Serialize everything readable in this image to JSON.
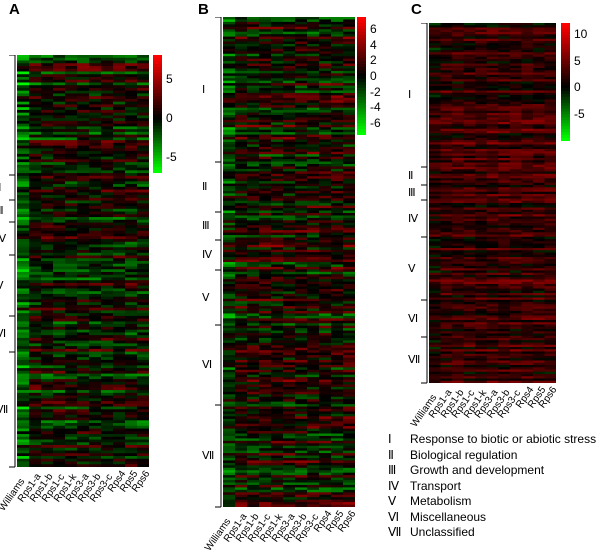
{
  "chart_data": [
    {
      "type": "heatmap",
      "panel": "A",
      "columns": [
        "Williams",
        "Rps1-a",
        "Rps1-b",
        "Rps1-c",
        "Rps1-k",
        "Rps3-a",
        "Rps3-b",
        "Rps3-c",
        "Rps4",
        "Rps5",
        "Rps6"
      ],
      "groups": [
        "Ⅰ",
        "Ⅱ",
        "Ⅲ",
        "Ⅳ",
        "Ⅴ",
        "Ⅵ",
        "Ⅶ"
      ],
      "colorbar": {
        "ticks": [
          "5",
          "0",
          "-5"
        ],
        "tick_values": [
          5,
          0,
          -5
        ],
        "range": [
          -7,
          8
        ],
        "colors": [
          "#00ff00",
          "#000000",
          "#ff0000"
        ]
      }
    },
    {
      "type": "heatmap",
      "panel": "B",
      "columns": [
        "Williams",
        "Rps1-a",
        "Rps1-b",
        "Rps1-c",
        "Rps1-k",
        "Rps3-a",
        "Rps3-b",
        "Rps3-c",
        "Rps4",
        "Rps5",
        "Rps6"
      ],
      "groups": [
        "Ⅰ",
        "Ⅱ",
        "Ⅲ",
        "Ⅳ",
        "Ⅴ",
        "Ⅵ",
        "Ⅶ"
      ],
      "colorbar": {
        "ticks": [
          "6",
          "4",
          "2",
          "0",
          "-2",
          "-4",
          "-6"
        ],
        "tick_values": [
          6,
          4,
          2,
          0,
          -2,
          -4,
          -6
        ],
        "range": [
          -7.5,
          7.5
        ],
        "colors": [
          "#00ff00",
          "#000000",
          "#ff0000"
        ]
      }
    },
    {
      "type": "heatmap",
      "panel": "C",
      "columns": [
        "Williams",
        "Rps1-a",
        "Rps1-b",
        "Rps1-c",
        "Rps1-k",
        "Rps3-a",
        "Rps3-b",
        "Rps3-c",
        "Rps4",
        "Rps5",
        "Rps6"
      ],
      "groups": [
        "Ⅰ",
        "Ⅱ",
        "Ⅲ",
        "Ⅳ",
        "Ⅴ",
        "Ⅵ",
        "Ⅶ"
      ],
      "colorbar": {
        "ticks": [
          "10",
          "5",
          "0",
          "-5"
        ],
        "tick_values": [
          10,
          5,
          0,
          -5
        ],
        "range": [
          -10,
          12
        ],
        "colors": [
          "#00ff00",
          "#000000",
          "#ff0000"
        ]
      }
    }
  ],
  "legend": [
    {
      "num": "Ⅰ",
      "label": "Response to biotic or abiotic stress"
    },
    {
      "num": "Ⅱ",
      "label": "Biological regulation"
    },
    {
      "num": "Ⅲ",
      "label": "Growth and development"
    },
    {
      "num": "Ⅳ",
      "label": "Transport"
    },
    {
      "num": "Ⅴ",
      "label": "Metabolism"
    },
    {
      "num": "Ⅵ",
      "label": "Miscellaneous"
    },
    {
      "num": "Ⅶ",
      "label": "Unclassified"
    }
  ]
}
